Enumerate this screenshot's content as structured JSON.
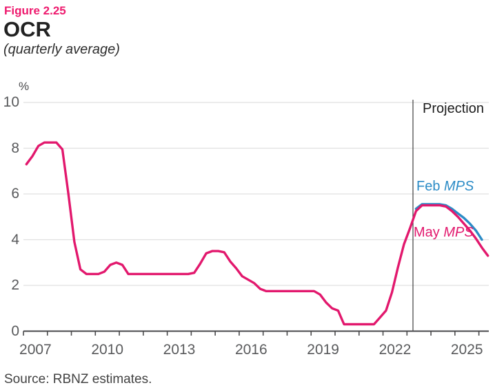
{
  "header": {
    "figure_label": "Figure 2.25",
    "title": "OCR",
    "subtitle": "(quarterly average)"
  },
  "footer": {
    "source": "Source: RBNZ estimates."
  },
  "colors": {
    "figure_label_pink": "#ee1a6e",
    "may_mps_pink": "#e2186d",
    "feb_mps_blue": "#2b8bc6",
    "gridline": "#e0e0e0",
    "axis": "#4a4a4c",
    "axis_text": "#595a5c",
    "projection_line": "#3c3c3c",
    "background": "#ffffff"
  },
  "chart_data": {
    "type": "line",
    "title": "OCR (quarterly average)",
    "unit_label": "%",
    "ylabel": "%",
    "xlabel": "",
    "ylim": [
      0,
      10
    ],
    "xlim": [
      2007,
      2026.5
    ],
    "y_ticks": [
      0,
      2,
      4,
      6,
      8,
      10
    ],
    "grid": "horizontal-light",
    "legend_position": "inline-labels",
    "x_minor_ticks": {
      "start": 2007,
      "end": 2026,
      "step": 1
    },
    "x_tick_labels": [
      {
        "label": "2007",
        "x": 2007.5
      },
      {
        "label": "2010",
        "x": 2010.5
      },
      {
        "label": "2013",
        "x": 2013.5
      },
      {
        "label": "2016",
        "x": 2016.5
      },
      {
        "label": "2019",
        "x": 2019.5
      },
      {
        "label": "2022",
        "x": 2022.5
      },
      {
        "label": "2025",
        "x": 2025.5
      }
    ],
    "projection": {
      "x": 2023.25,
      "label": "Projection"
    },
    "series": [
      {
        "name": "Feb MPS",
        "label_prefix": "Feb ",
        "label_suffix": "MPS",
        "color": "#2b8bc6",
        "x_start": 2023.375,
        "x_step": 0.25,
        "values": [
          5.35,
          5.55,
          5.55,
          5.55,
          5.55,
          5.5,
          5.35,
          5.15,
          4.95,
          4.7,
          4.4,
          4.0
        ]
      },
      {
        "name": "May MPS",
        "label_prefix": "May ",
        "label_suffix": "MPS",
        "color": "#e2186d",
        "x_start": 2007.125,
        "x_step": 0.25,
        "values": [
          7.3,
          7.65,
          8.1,
          8.25,
          8.25,
          8.25,
          7.95,
          6.0,
          3.9,
          2.7,
          2.5,
          2.5,
          2.5,
          2.6,
          2.9,
          3.0,
          2.9,
          2.5,
          2.5,
          2.5,
          2.5,
          2.5,
          2.5,
          2.5,
          2.5,
          2.5,
          2.5,
          2.5,
          2.55,
          2.95,
          3.4,
          3.5,
          3.5,
          3.45,
          3.05,
          2.75,
          2.4,
          2.25,
          2.1,
          1.85,
          1.75,
          1.75,
          1.75,
          1.75,
          1.75,
          1.75,
          1.75,
          1.75,
          1.75,
          1.6,
          1.25,
          1.0,
          0.9,
          0.3,
          0.3,
          0.3,
          0.3,
          0.3,
          0.3,
          0.6,
          0.9,
          1.7,
          2.8,
          3.8,
          4.5,
          5.25,
          5.5,
          5.5,
          5.5,
          5.5,
          5.45,
          5.25,
          5.0,
          4.7,
          4.4,
          4.05,
          3.65,
          3.3
        ]
      }
    ]
  }
}
